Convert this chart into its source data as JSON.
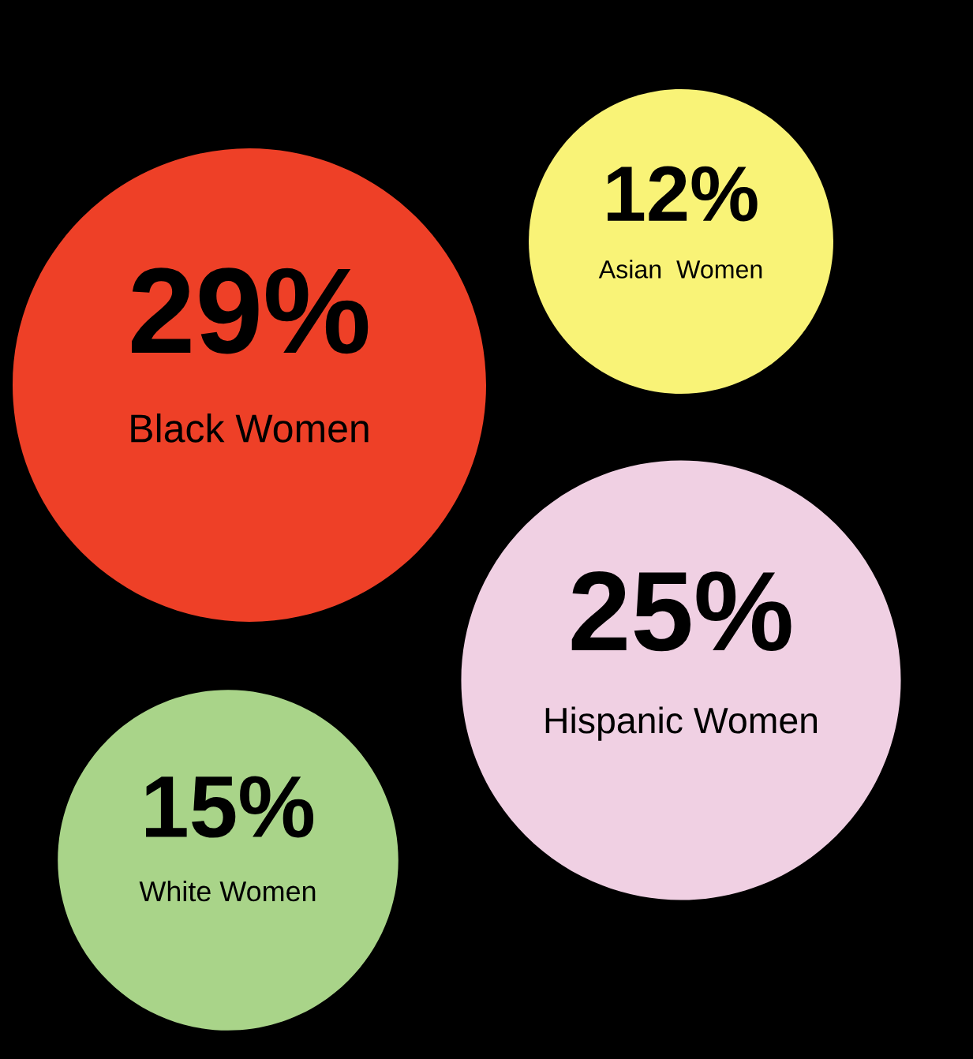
{
  "chart_data": {
    "type": "other",
    "categories": [
      "Black Women",
      "Asian  Women",
      "Hispanic Women",
      "White Women"
    ],
    "values": [
      29,
      12,
      25,
      15
    ],
    "value_labels": [
      "29%",
      "12%",
      "25%",
      "15%"
    ],
    "colors": [
      "#ee4027",
      "#f9f377",
      "#f0d0e3",
      "#a9d489"
    ]
  }
}
